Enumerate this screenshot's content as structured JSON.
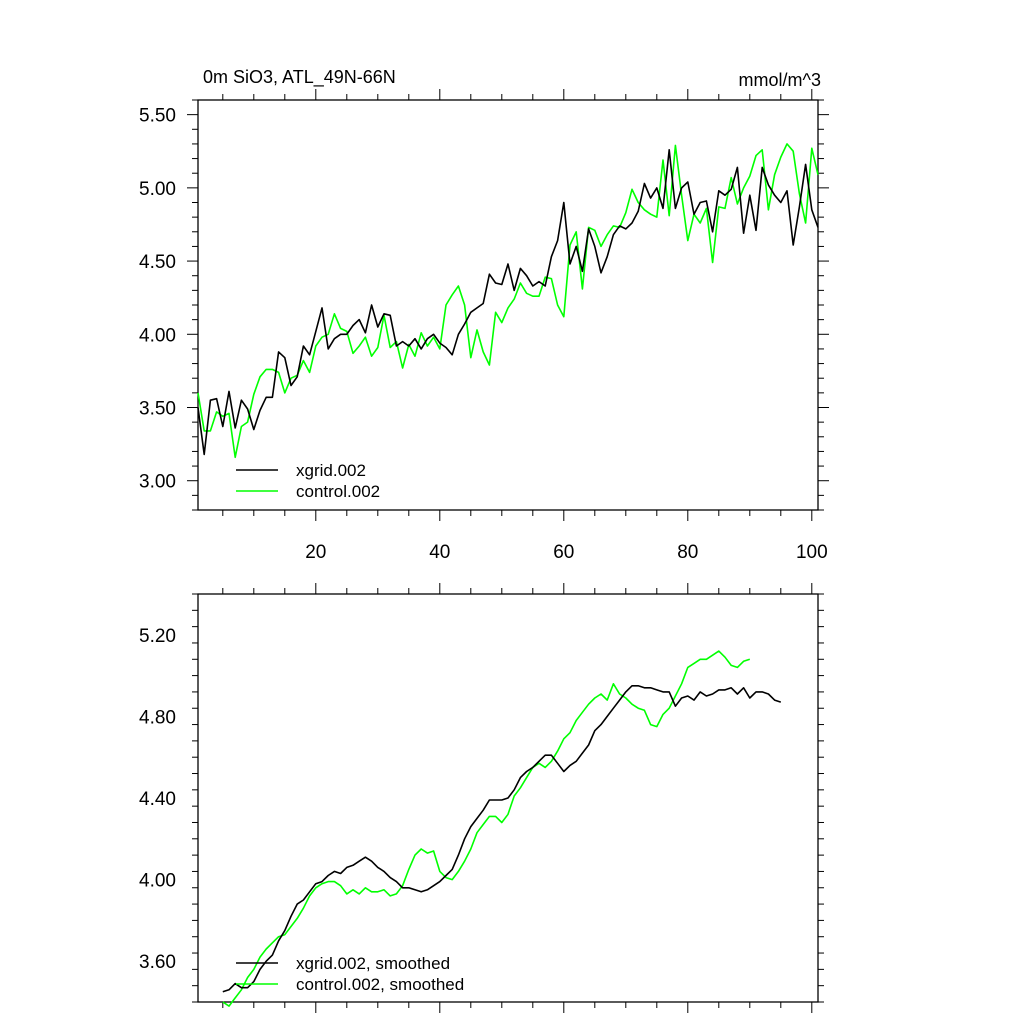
{
  "chart_data": [
    {
      "type": "line",
      "title_left": "0m SiO3, ATL_49N-66N",
      "title_right": "mmol/m^3",
      "xlim": [
        1,
        101
      ],
      "ylim": [
        2.8,
        5.6
      ],
      "x_ticks": [
        20,
        40,
        60,
        80,
        100
      ],
      "x_tick_labels": [
        "20",
        "40",
        "60",
        "80",
        "100"
      ],
      "y_ticks": [
        3.0,
        3.5,
        4.0,
        4.5,
        5.0,
        5.5
      ],
      "y_tick_labels": [
        "3.00",
        "3.50",
        "4.00",
        "4.50",
        "5.00",
        "5.50"
      ],
      "legend_position": "bottom-left",
      "series": [
        {
          "name": "xgrid.002",
          "color": "#000000",
          "values": [
            3.5,
            3.18,
            3.55,
            3.56,
            3.37,
            3.61,
            3.36,
            3.55,
            3.49,
            3.35,
            3.48,
            3.57,
            3.57,
            3.88,
            3.84,
            3.65,
            3.71,
            3.92,
            3.86,
            4.02,
            4.18,
            3.9,
            3.97,
            4.0,
            4.0,
            4.06,
            4.1,
            4.01,
            4.2,
            4.05,
            4.14,
            4.13,
            3.92,
            3.95,
            3.92,
            3.97,
            3.9,
            3.97,
            4.0,
            3.94,
            3.91,
            3.86,
            4.0,
            4.07,
            4.15,
            4.18,
            4.21,
            4.41,
            4.35,
            4.34,
            4.48,
            4.3,
            4.45,
            4.4,
            4.33,
            4.36,
            4.33,
            4.53,
            4.64,
            4.9,
            4.48,
            4.6,
            4.43,
            4.72,
            4.6,
            4.42,
            4.53,
            4.68,
            4.74,
            4.72,
            4.76,
            4.84,
            5.03,
            4.93,
            5.0,
            4.86,
            5.26,
            4.86,
            5.0,
            5.04,
            4.82,
            4.9,
            4.91,
            4.7,
            4.98,
            4.95,
            4.99,
            5.14,
            4.69,
            4.95,
            4.71,
            5.14,
            5.02,
            4.95,
            4.9,
            4.98,
            4.61,
            4.87,
            5.16,
            4.85,
            4.73
          ]
        },
        {
          "name": "control.002",
          "color": "#00ff00",
          "values": [
            3.6,
            3.34,
            3.34,
            3.47,
            3.44,
            3.46,
            3.16,
            3.37,
            3.4,
            3.59,
            3.71,
            3.76,
            3.76,
            3.74,
            3.6,
            3.7,
            3.72,
            3.82,
            3.74,
            3.92,
            3.98,
            4.0,
            4.14,
            4.04,
            4.02,
            3.87,
            3.92,
            3.98,
            3.85,
            3.91,
            4.13,
            3.91,
            3.95,
            3.77,
            3.93,
            3.85,
            4.01,
            3.92,
            3.98,
            3.9,
            4.2,
            4.27,
            4.33,
            4.2,
            3.84,
            4.03,
            3.88,
            3.79,
            4.15,
            4.08,
            4.18,
            4.24,
            4.35,
            4.28,
            4.26,
            4.26,
            4.39,
            4.38,
            4.2,
            4.12,
            4.61,
            4.7,
            4.31,
            4.73,
            4.71,
            4.6,
            4.68,
            4.74,
            4.73,
            4.83,
            4.99,
            4.9,
            4.85,
            4.82,
            4.8,
            5.19,
            4.81,
            5.29,
            4.95,
            4.64,
            4.82,
            4.76,
            4.86,
            4.49,
            4.87,
            4.86,
            5.07,
            4.89,
            5.0,
            5.08,
            5.22,
            5.26,
            4.85,
            5.09,
            5.21,
            5.3,
            5.25,
            4.96,
            4.76,
            5.27,
            5.09
          ]
        }
      ]
    },
    {
      "type": "line",
      "xlim": [
        1,
        101
      ],
      "ylim": [
        3.4,
        5.4
      ],
      "x_ticks": [
        20,
        40,
        60,
        80,
        100
      ],
      "y_ticks": [
        3.6,
        4.0,
        4.4,
        4.8,
        5.2
      ],
      "y_tick_labels": [
        "3.60",
        "4.00",
        "4.40",
        "4.80",
        "5.20"
      ],
      "legend_position": "bottom-left",
      "series": [
        {
          "name": "xgrid.002, smoothed",
          "color": "#000000",
          "x_start": 5,
          "values": [
            3.45,
            3.46,
            3.49,
            3.47,
            3.47,
            3.5,
            3.56,
            3.6,
            3.63,
            3.7,
            3.75,
            3.82,
            3.88,
            3.9,
            3.94,
            3.98,
            3.99,
            4.02,
            4.04,
            4.03,
            4.06,
            4.07,
            4.09,
            4.11,
            4.09,
            4.06,
            4.04,
            4.01,
            3.99,
            3.96,
            3.96,
            3.95,
            3.94,
            3.95,
            3.97,
            3.99,
            4.02,
            4.05,
            4.12,
            4.2,
            4.26,
            4.3,
            4.34,
            4.39,
            4.39,
            4.39,
            4.4,
            4.44,
            4.5,
            4.53,
            4.55,
            4.58,
            4.61,
            4.61,
            4.57,
            4.53,
            4.56,
            4.58,
            4.62,
            4.66,
            4.73,
            4.76,
            4.8,
            4.84,
            4.88,
            4.92,
            4.95,
            4.95,
            4.94,
            4.94,
            4.93,
            4.92,
            4.92,
            4.85,
            4.89,
            4.9,
            4.88,
            4.92,
            4.9,
            4.91,
            4.93,
            4.93,
            4.94,
            4.91,
            4.94,
            4.89,
            4.92,
            4.92,
            4.91,
            4.88,
            4.87
          ]
        },
        {
          "name": "control.002, smoothed",
          "color": "#00ff00",
          "x_start": 5,
          "values": [
            3.4,
            3.38,
            3.42,
            3.46,
            3.52,
            3.56,
            3.62,
            3.66,
            3.69,
            3.72,
            3.73,
            3.77,
            3.81,
            3.86,
            3.92,
            3.96,
            3.98,
            3.99,
            3.99,
            3.97,
            3.93,
            3.95,
            3.93,
            3.96,
            3.94,
            3.94,
            3.95,
            3.92,
            3.93,
            3.97,
            4.05,
            4.12,
            4.15,
            4.13,
            4.14,
            4.04,
            4.01,
            4.0,
            4.04,
            4.09,
            4.15,
            4.23,
            4.27,
            4.31,
            4.31,
            4.28,
            4.32,
            4.41,
            4.45,
            4.5,
            4.55,
            4.57,
            4.55,
            4.58,
            4.63,
            4.69,
            4.72,
            4.78,
            4.82,
            4.86,
            4.89,
            4.91,
            4.88,
            4.96,
            4.91,
            4.89,
            4.86,
            4.84,
            4.83,
            4.76,
            4.75,
            4.81,
            4.84,
            4.9,
            4.96,
            5.04,
            5.06,
            5.08,
            5.08,
            5.1,
            5.12,
            5.09,
            5.05,
            5.04,
            5.07,
            5.08
          ]
        }
      ]
    }
  ]
}
